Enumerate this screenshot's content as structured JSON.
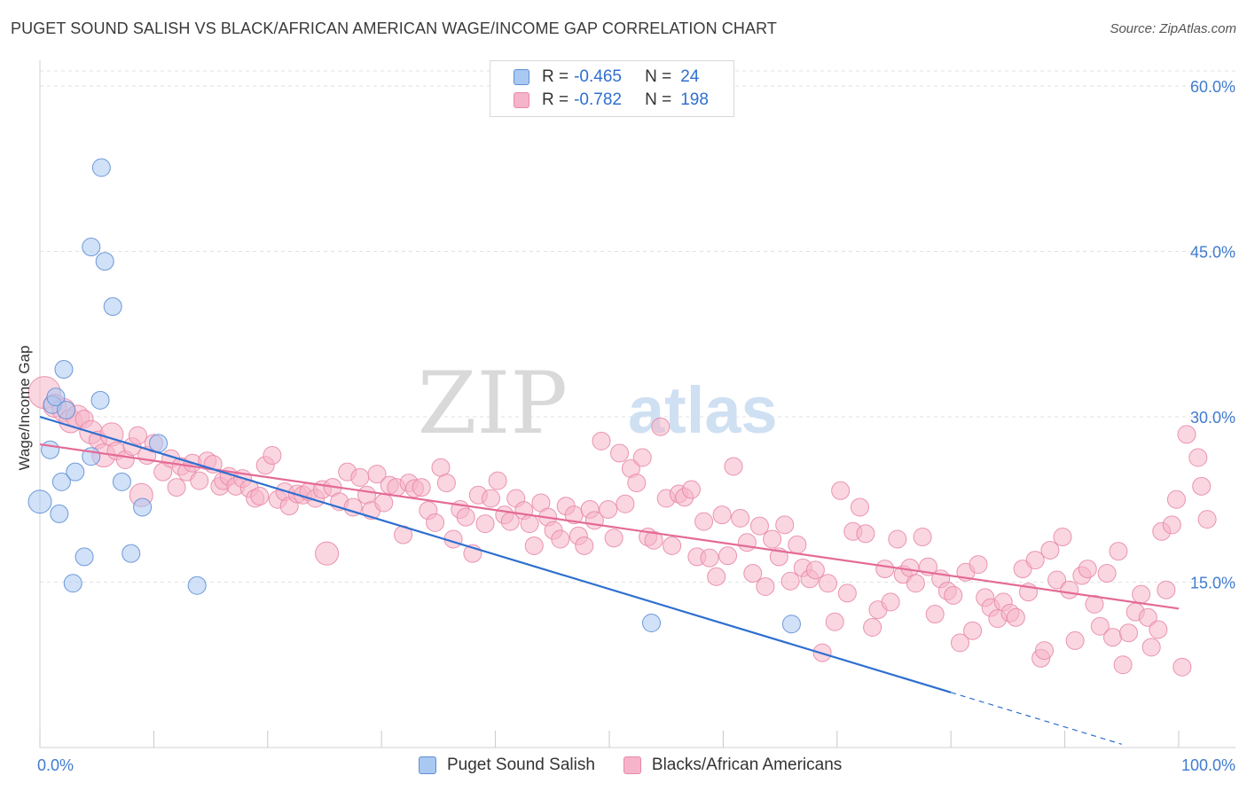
{
  "header": {
    "title": "PUGET SOUND SALISH VS BLACK/AFRICAN AMERICAN WAGE/INCOME GAP CORRELATION CHART",
    "source": "Source: ZipAtlas.com"
  },
  "watermark": {
    "zip": "ZIP",
    "atlas": "atlas"
  },
  "stats": [
    {
      "r_label": "R = ",
      "r_value": "-0.465",
      "n_label": "N = ",
      "n_value": "24"
    },
    {
      "r_label": "R = ",
      "r_value": "-0.782",
      "n_label": "N = ",
      "n_value": "198"
    }
  ],
  "chart_data": {
    "type": "scatter",
    "title": "PUGET SOUND SALISH VS BLACK/AFRICAN AMERICAN WAGE/INCOME GAP CORRELATION CHART",
    "xlabel": "",
    "ylabel": "Wage/Income Gap",
    "xlim": [
      0,
      100
    ],
    "ylim": [
      0,
      60
    ],
    "x_tick_labels": [
      "0.0%",
      "100.0%"
    ],
    "y_ticks": [
      15,
      30,
      45,
      60
    ],
    "y_tick_labels": [
      "15.0%",
      "30.0%",
      "45.0%",
      "60.0%"
    ],
    "grid": true,
    "legend_position": "bottom-center",
    "colors": {
      "puget_fill": "#a9c8f2",
      "puget_stroke": "#5f8fd4",
      "puget_line": "#2d6fd0",
      "black_fill": "#f5b4c9",
      "black_stroke": "#e88aa8",
      "black_line": "#e46a96",
      "tick_label": "#3f7bd0",
      "grid": "#e2e2e2"
    },
    "series": [
      {
        "name": "Puget Sound Salish",
        "trend": {
          "x_start": 0,
          "y_start": 30.0,
          "x_solid_end": 80,
          "y_solid_end": 5.0,
          "x_dash_end": 95,
          "y_dash_end": 0.3
        },
        "points": [
          [
            0.0,
            22.3,
            2
          ],
          [
            0.9,
            27.0,
            1
          ],
          [
            1.1,
            31.1,
            1
          ],
          [
            1.4,
            31.8,
            1
          ],
          [
            1.7,
            21.2,
            1
          ],
          [
            1.9,
            24.1,
            1
          ],
          [
            2.1,
            34.3,
            1
          ],
          [
            2.3,
            30.6,
            1
          ],
          [
            2.9,
            14.9,
            1
          ],
          [
            3.1,
            25.0,
            1
          ],
          [
            3.9,
            17.3,
            1
          ],
          [
            4.5,
            45.4,
            1
          ],
          [
            4.5,
            26.4,
            1
          ],
          [
            5.3,
            31.5,
            1
          ],
          [
            5.4,
            52.6,
            1
          ],
          [
            5.7,
            44.1,
            1
          ],
          [
            6.4,
            40.0,
            1
          ],
          [
            7.2,
            24.1,
            1
          ],
          [
            8.0,
            17.6,
            1
          ],
          [
            9.0,
            21.8,
            1
          ],
          [
            10.4,
            27.6,
            1
          ],
          [
            13.8,
            14.7,
            1
          ],
          [
            53.7,
            11.3,
            1
          ],
          [
            66.0,
            11.2,
            1
          ]
        ]
      },
      {
        "name": "Blacks/African Americans",
        "trend": {
          "x_start": 0,
          "y_start": 27.5,
          "x_end": 100,
          "y_end": 12.6
        },
        "points": [
          [
            0.4,
            32.2,
            3
          ],
          [
            1.3,
            31.0,
            2
          ],
          [
            2.1,
            30.6,
            2
          ],
          [
            2.7,
            29.6,
            2
          ],
          [
            3.3,
            30.0,
            2
          ],
          [
            3.9,
            29.8,
            1
          ],
          [
            4.5,
            28.6,
            2
          ],
          [
            5.1,
            27.9,
            1
          ],
          [
            5.6,
            26.5,
            2
          ],
          [
            6.3,
            28.4,
            2
          ],
          [
            6.7,
            26.9,
            1
          ],
          [
            7.5,
            26.1,
            1
          ],
          [
            8.1,
            27.3,
            1
          ],
          [
            8.6,
            28.3,
            1
          ],
          [
            8.9,
            22.9,
            2
          ],
          [
            9.4,
            26.5,
            1
          ],
          [
            10.0,
            27.6,
            1
          ],
          [
            10.8,
            25.0,
            1
          ],
          [
            11.5,
            26.2,
            1
          ],
          [
            12.0,
            23.6,
            1
          ],
          [
            12.4,
            25.5,
            1
          ],
          [
            12.9,
            25.0,
            1
          ],
          [
            13.4,
            25.8,
            1
          ],
          [
            14.0,
            24.2,
            1
          ],
          [
            14.7,
            26.0,
            1
          ],
          [
            15.2,
            25.7,
            1
          ],
          [
            15.8,
            23.7,
            1
          ],
          [
            16.1,
            24.2,
            1
          ],
          [
            16.6,
            24.6,
            1
          ],
          [
            17.2,
            23.7,
            1
          ],
          [
            17.8,
            24.4,
            1
          ],
          [
            18.4,
            23.5,
            1
          ],
          [
            18.9,
            22.6,
            1
          ],
          [
            19.3,
            22.8,
            1
          ],
          [
            19.8,
            25.6,
            1
          ],
          [
            20.4,
            26.5,
            1
          ],
          [
            20.9,
            22.5,
            1
          ],
          [
            21.5,
            23.2,
            1
          ],
          [
            21.9,
            21.9,
            1
          ],
          [
            22.6,
            23.0,
            1
          ],
          [
            23.1,
            22.9,
            1
          ],
          [
            23.6,
            23.2,
            1
          ],
          [
            24.2,
            22.6,
            1
          ],
          [
            24.8,
            23.4,
            1
          ],
          [
            25.2,
            17.6,
            2
          ],
          [
            25.7,
            23.6,
            1
          ],
          [
            26.3,
            22.3,
            1
          ],
          [
            27.0,
            25.0,
            1
          ],
          [
            27.5,
            21.8,
            1
          ],
          [
            28.1,
            24.5,
            1
          ],
          [
            28.7,
            22.9,
            1
          ],
          [
            29.1,
            21.5,
            1
          ],
          [
            29.6,
            24.8,
            1
          ],
          [
            30.2,
            22.2,
            1
          ],
          [
            30.7,
            23.8,
            1
          ],
          [
            31.3,
            23.6,
            1
          ],
          [
            31.9,
            19.3,
            1
          ],
          [
            32.4,
            24.0,
            1
          ],
          [
            32.9,
            23.5,
            1
          ],
          [
            33.5,
            23.6,
            1
          ],
          [
            34.1,
            21.5,
            1
          ],
          [
            34.7,
            20.4,
            1
          ],
          [
            35.2,
            25.4,
            1
          ],
          [
            35.7,
            24.0,
            1
          ],
          [
            36.3,
            18.9,
            1
          ],
          [
            36.9,
            21.6,
            1
          ],
          [
            37.4,
            20.9,
            1
          ],
          [
            38.0,
            17.6,
            1
          ],
          [
            38.5,
            22.9,
            1
          ],
          [
            39.1,
            20.3,
            1
          ],
          [
            39.6,
            22.6,
            1
          ],
          [
            40.2,
            24.2,
            1
          ],
          [
            40.8,
            21.1,
            1
          ],
          [
            41.3,
            20.5,
            1
          ],
          [
            41.8,
            22.6,
            1
          ],
          [
            42.5,
            21.5,
            1
          ],
          [
            43.0,
            20.3,
            1
          ],
          [
            43.4,
            18.3,
            1
          ],
          [
            44.0,
            22.2,
            1
          ],
          [
            44.6,
            20.9,
            1
          ],
          [
            45.1,
            19.7,
            1
          ],
          [
            45.7,
            18.9,
            1
          ],
          [
            46.2,
            21.9,
            1
          ],
          [
            46.9,
            21.1,
            1
          ],
          [
            47.3,
            19.2,
            1
          ],
          [
            47.8,
            18.3,
            1
          ],
          [
            48.3,
            21.6,
            1
          ],
          [
            48.7,
            20.6,
            1
          ],
          [
            49.3,
            27.8,
            1
          ],
          [
            49.9,
            21.6,
            1
          ],
          [
            50.4,
            19.0,
            1
          ],
          [
            50.9,
            26.7,
            1
          ],
          [
            51.4,
            22.1,
            1
          ],
          [
            51.9,
            25.3,
            1
          ],
          [
            52.4,
            24.0,
            1
          ],
          [
            52.9,
            26.3,
            1
          ],
          [
            53.4,
            19.1,
            1
          ],
          [
            53.9,
            18.8,
            1
          ],
          [
            54.5,
            29.1,
            1
          ],
          [
            55.0,
            22.6,
            1
          ],
          [
            55.5,
            18.3,
            1
          ],
          [
            56.1,
            23.0,
            1
          ],
          [
            56.6,
            22.7,
            1
          ],
          [
            57.2,
            23.4,
            1
          ],
          [
            57.7,
            17.3,
            1
          ],
          [
            58.3,
            20.5,
            1
          ],
          [
            58.8,
            17.2,
            1
          ],
          [
            59.4,
            15.5,
            1
          ],
          [
            59.9,
            21.1,
            1
          ],
          [
            60.4,
            17.4,
            1
          ],
          [
            60.9,
            25.5,
            1
          ],
          [
            61.5,
            20.8,
            1
          ],
          [
            62.1,
            18.6,
            1
          ],
          [
            62.6,
            15.8,
            1
          ],
          [
            63.2,
            20.1,
            1
          ],
          [
            63.7,
            14.6,
            1
          ],
          [
            64.3,
            18.9,
            1
          ],
          [
            64.9,
            17.3,
            1
          ],
          [
            65.4,
            20.2,
            1
          ],
          [
            65.9,
            15.1,
            1
          ],
          [
            66.5,
            18.4,
            1
          ],
          [
            67.0,
            16.3,
            1
          ],
          [
            67.6,
            15.3,
            1
          ],
          [
            68.1,
            16.1,
            1
          ],
          [
            68.7,
            8.6,
            1
          ],
          [
            69.2,
            14.9,
            1
          ],
          [
            69.8,
            11.4,
            1
          ],
          [
            70.3,
            23.3,
            1
          ],
          [
            70.9,
            14.0,
            1
          ],
          [
            71.4,
            19.6,
            1
          ],
          [
            72.0,
            21.8,
            1
          ],
          [
            72.5,
            19.4,
            1
          ],
          [
            73.1,
            10.9,
            1
          ],
          [
            73.6,
            12.5,
            1
          ],
          [
            74.2,
            16.2,
            1
          ],
          [
            74.7,
            13.2,
            1
          ],
          [
            75.3,
            18.9,
            1
          ],
          [
            75.8,
            15.7,
            1
          ],
          [
            76.4,
            16.3,
            1
          ],
          [
            76.9,
            14.9,
            1
          ],
          [
            77.5,
            19.1,
            1
          ],
          [
            78.0,
            16.4,
            1
          ],
          [
            78.6,
            12.1,
            1
          ],
          [
            79.1,
            15.3,
            1
          ],
          [
            79.7,
            14.2,
            1
          ],
          [
            80.2,
            13.8,
            1
          ],
          [
            80.8,
            9.5,
            1
          ],
          [
            81.3,
            15.9,
            1
          ],
          [
            81.9,
            10.6,
            1
          ],
          [
            82.4,
            16.6,
            1
          ],
          [
            83.0,
            13.6,
            1
          ],
          [
            83.5,
            12.7,
            1
          ],
          [
            84.1,
            11.7,
            1
          ],
          [
            84.6,
            13.2,
            1
          ],
          [
            85.2,
            12.2,
            1
          ],
          [
            85.7,
            11.8,
            1
          ],
          [
            86.3,
            16.2,
            1
          ],
          [
            86.8,
            14.1,
            1
          ],
          [
            87.4,
            17.0,
            1
          ],
          [
            87.9,
            8.1,
            1
          ],
          [
            88.2,
            8.8,
            1
          ],
          [
            88.7,
            17.9,
            1
          ],
          [
            89.3,
            15.2,
            1
          ],
          [
            89.8,
            19.1,
            1
          ],
          [
            90.4,
            14.3,
            1
          ],
          [
            90.9,
            9.7,
            1
          ],
          [
            91.5,
            15.6,
            1
          ],
          [
            92.0,
            16.2,
            1
          ],
          [
            92.6,
            13.0,
            1
          ],
          [
            93.1,
            11.0,
            1
          ],
          [
            93.7,
            15.8,
            1
          ],
          [
            94.2,
            10.0,
            1
          ],
          [
            94.7,
            17.8,
            1
          ],
          [
            95.1,
            7.5,
            1
          ],
          [
            95.6,
            10.4,
            1
          ],
          [
            96.2,
            12.3,
            1
          ],
          [
            96.7,
            13.9,
            1
          ],
          [
            97.3,
            11.8,
            1
          ],
          [
            97.6,
            9.1,
            1
          ],
          [
            98.2,
            10.7,
            1
          ],
          [
            98.5,
            19.6,
            1
          ],
          [
            98.9,
            14.3,
            1
          ],
          [
            99.4,
            20.2,
            1
          ],
          [
            99.8,
            22.5,
            1
          ],
          [
            100.3,
            7.3,
            1
          ],
          [
            100.7,
            28.4,
            1
          ],
          [
            101.7,
            26.3,
            1
          ],
          [
            102.0,
            23.7,
            1
          ],
          [
            102.5,
            20.7,
            1
          ]
        ]
      }
    ]
  },
  "legend_bottom": {
    "items": [
      {
        "label": "Puget Sound Salish"
      },
      {
        "label": "Blacks/African Americans"
      }
    ]
  }
}
